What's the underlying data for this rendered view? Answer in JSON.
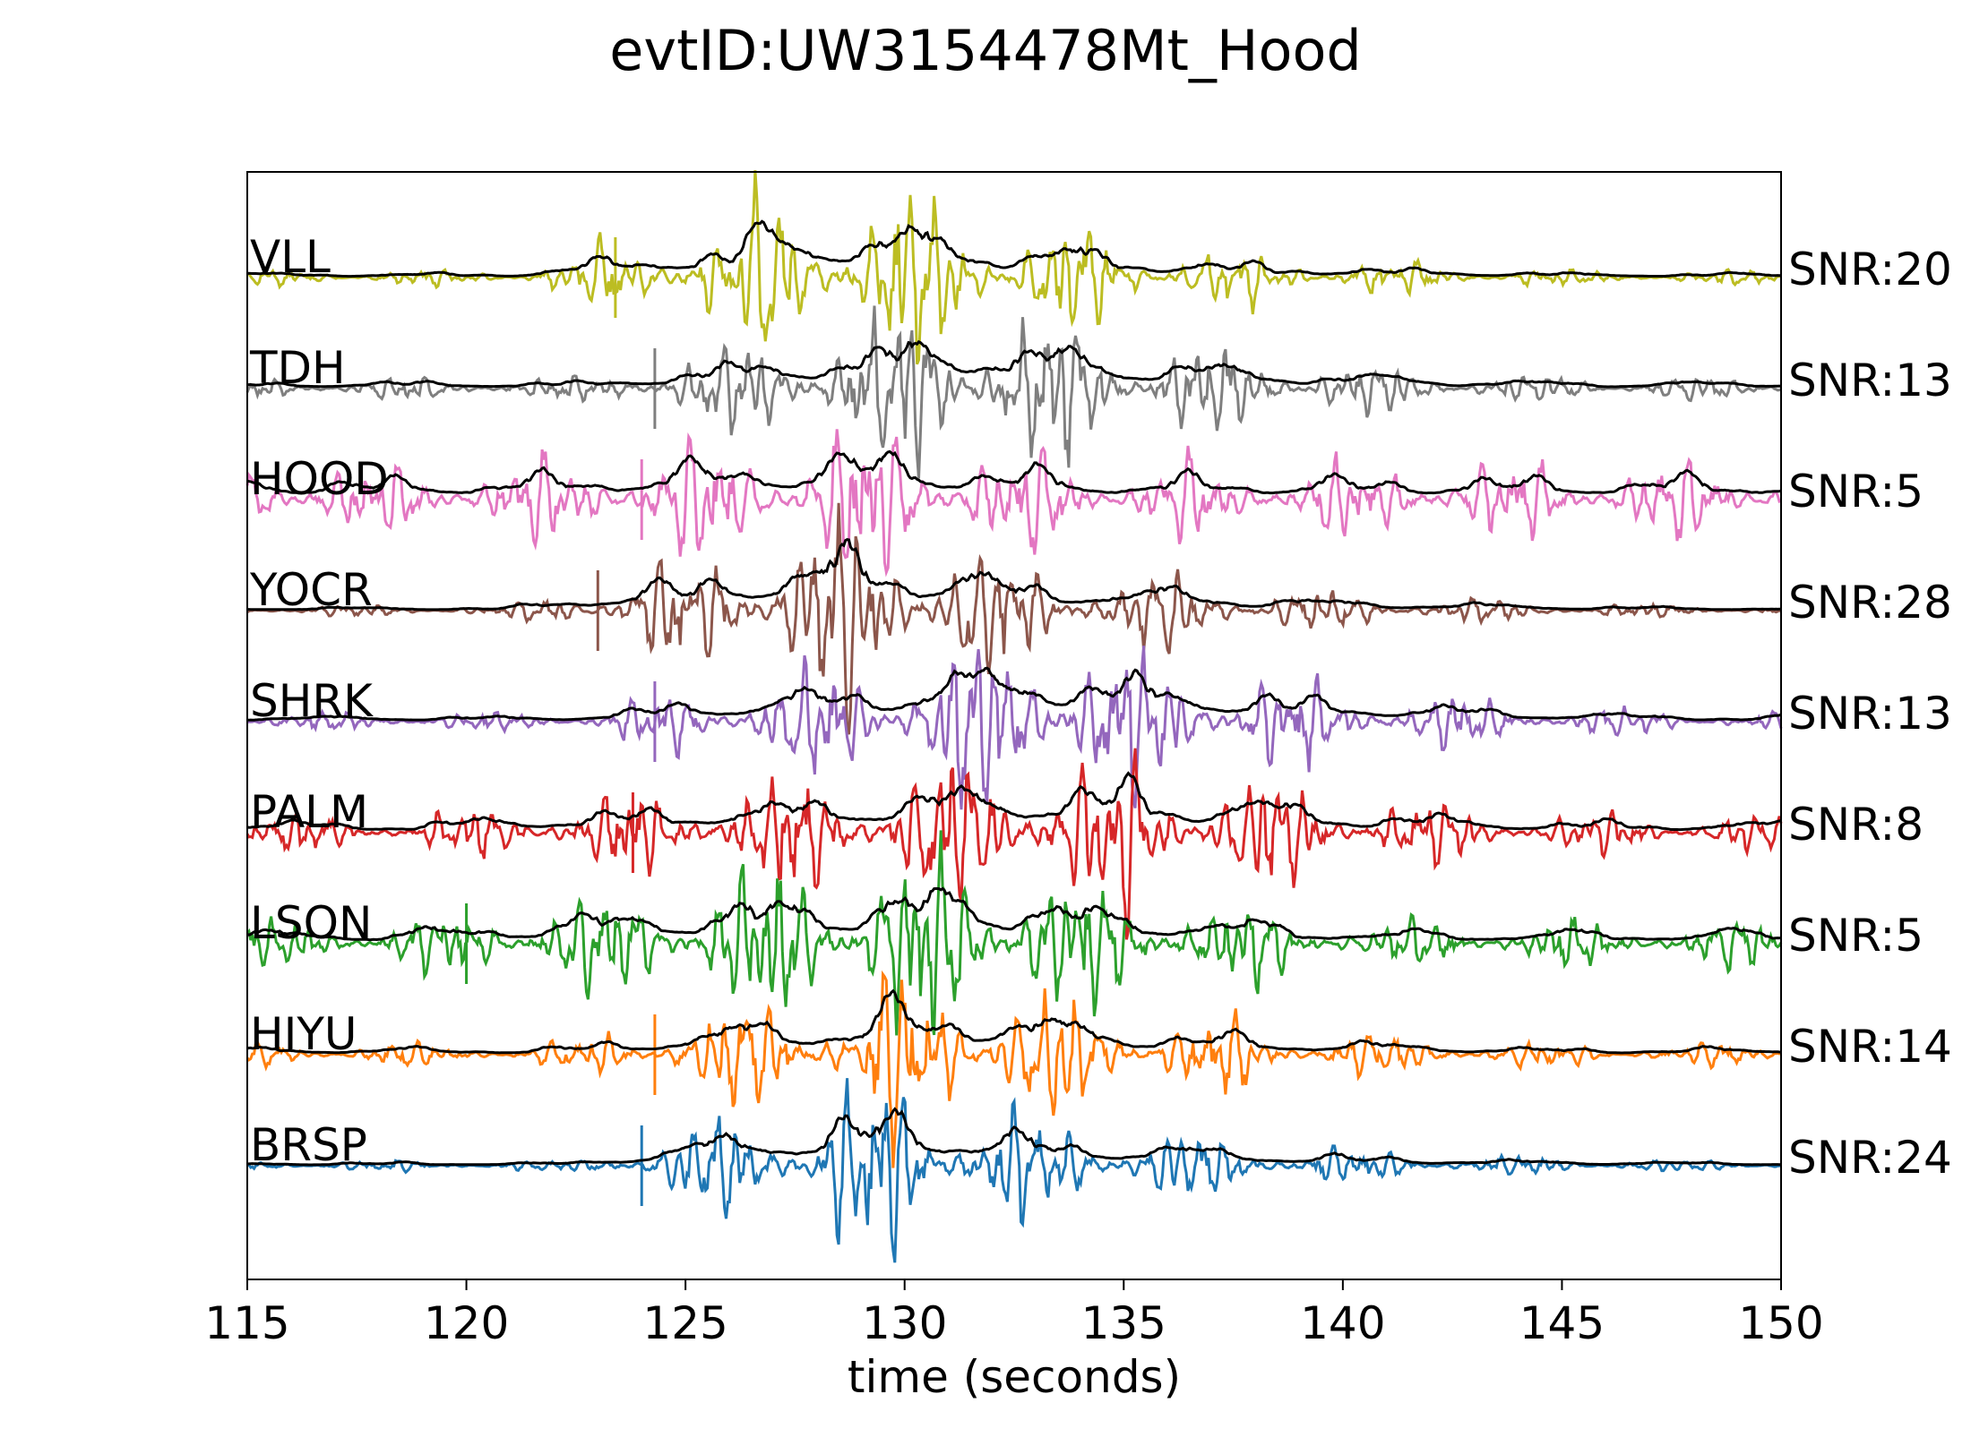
{
  "chart_data": {
    "type": "line",
    "title": "evtID:UW3154478Mt_Hood",
    "xlabel": "time (seconds)",
    "ylabel": "",
    "xlim": [
      115,
      150
    ],
    "xticks": [
      "115",
      "120",
      "125",
      "130",
      "135",
      "140",
      "145",
      "150"
    ],
    "envelope_color": "#000000",
    "series": [
      {
        "name": "VLL",
        "snr_label": "SNR:20",
        "color": "#bcbd22",
        "onset": 120.5,
        "peak_time": 129.0,
        "peak_amp": 0.55,
        "noise": 0.04,
        "pick": 123.4
      },
      {
        "name": "TDH",
        "snr_label": "SNR:13",
        "color": "#7f7f7f",
        "onset": 121.5,
        "peak_time": 131.5,
        "peak_amp": 0.52,
        "noise": 0.06,
        "pick": 124.3
      },
      {
        "name": "HOOD",
        "snr_label": "SNR:5",
        "color": "#e377c2",
        "onset": 115.0,
        "peak_time": 129.5,
        "peak_amp": 0.45,
        "noise": 0.2,
        "pick": 124.0
      },
      {
        "name": "YOCR",
        "snr_label": "SNR:28",
        "color": "#8c564b",
        "onset": 120.5,
        "peak_time": 129.0,
        "peak_amp": 0.55,
        "noise": 0.03,
        "pick": 123.0
      },
      {
        "name": "SHRK",
        "snr_label": "SNR:13",
        "color": "#9467bd",
        "onset": 121.0,
        "peak_time": 133.5,
        "peak_amp": 0.55,
        "noise": 0.05,
        "pick": 124.3
      },
      {
        "name": "PALM",
        "snr_label": "SNR:8",
        "color": "#d62728",
        "onset": 115.0,
        "peak_time": 134.5,
        "peak_amp": 0.5,
        "noise": 0.1,
        "pick": 123.8
      },
      {
        "name": "LSON",
        "snr_label": "SNR:5",
        "color": "#2ca02c",
        "onset": 115.0,
        "peak_time": 131.5,
        "peak_amp": 0.55,
        "noise": 0.12,
        "pick": 120.0
      },
      {
        "name": "HIYU",
        "snr_label": "SNR:14",
        "color": "#ff7f0e",
        "onset": 120.5,
        "peak_time": 131.0,
        "peak_amp": 0.5,
        "noise": 0.06,
        "pick": 124.3
      },
      {
        "name": "BRSP",
        "snr_label": "SNR:24",
        "color": "#1f77b4",
        "onset": 122.0,
        "peak_time": 129.5,
        "peak_amp": 0.5,
        "noise": 0.03,
        "pick": 124.0
      }
    ]
  }
}
